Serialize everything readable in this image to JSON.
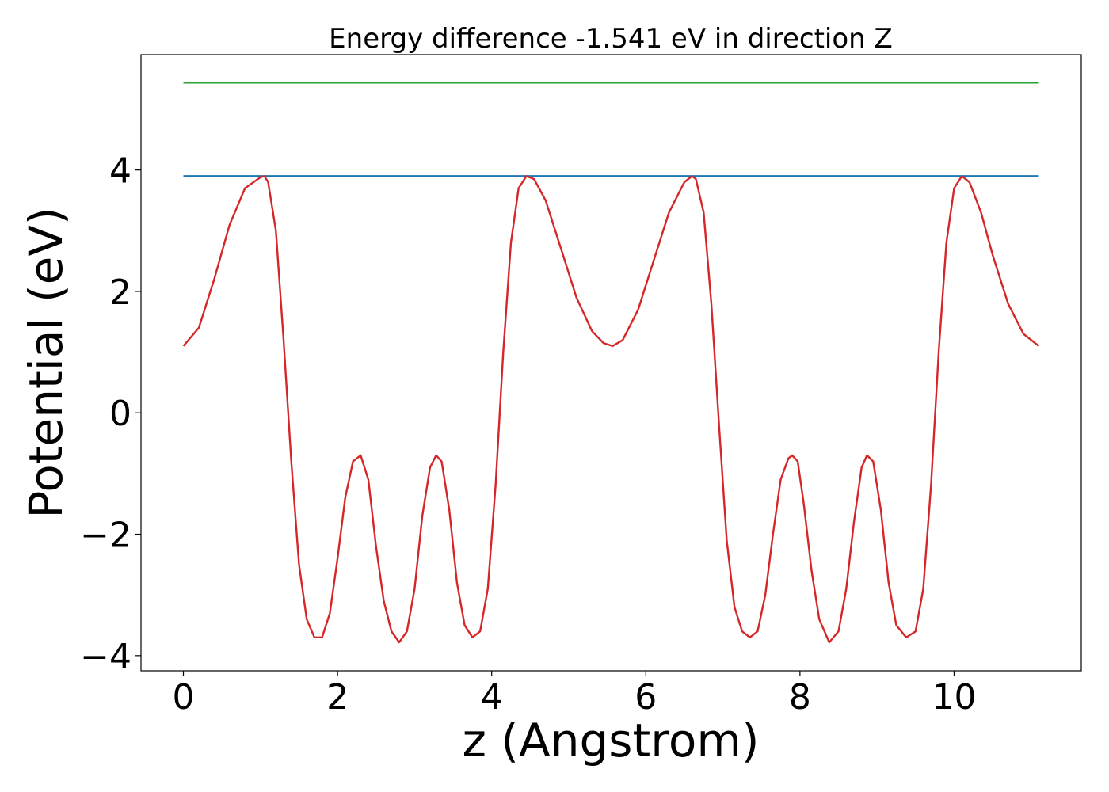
{
  "chart_data": {
    "type": "line",
    "title": "Energy difference -1.541 eV in direction Z",
    "xlabel": "z (Angstrom)",
    "ylabel": "Potential (eV)",
    "xlim": [
      -0.55,
      11.65
    ],
    "ylim": [
      -4.25,
      5.9
    ],
    "xticks": [
      0,
      2,
      4,
      6,
      8,
      10
    ],
    "xtick_labels": [
      "0",
      "2",
      "4",
      "6",
      "8",
      "10"
    ],
    "yticks": [
      -4,
      -2,
      0,
      2,
      4
    ],
    "ytick_labels": [
      "−4",
      "−2",
      "0",
      "2",
      "4"
    ],
    "grid": false,
    "series": [
      {
        "color": "#2ca02c",
        "x": [
          0,
          11.1
        ],
        "y": [
          5.44,
          5.44
        ]
      },
      {
        "color": "#1f77b4",
        "x": [
          0,
          11.1
        ],
        "y": [
          3.9,
          3.9
        ]
      },
      {
        "color": "#d62728",
        "x": [
          0,
          0.2,
          0.4,
          0.6,
          0.8,
          1.0,
          1.05,
          1.1,
          1.2,
          1.3,
          1.4,
          1.5,
          1.6,
          1.7,
          1.8,
          1.9,
          2.0,
          2.1,
          2.2,
          2.3,
          2.4,
          2.5,
          2.6,
          2.7,
          2.8,
          2.9,
          3.0,
          3.1,
          3.2,
          3.28,
          3.35,
          3.45,
          3.55,
          3.65,
          3.75,
          3.85,
          3.95,
          4.05,
          4.15,
          4.25,
          4.35,
          4.45,
          4.55,
          4.7,
          4.9,
          5.1,
          5.3,
          5.45,
          5.57,
          5.7,
          5.9,
          6.1,
          6.3,
          6.5,
          6.6,
          6.65,
          6.75,
          6.85,
          6.95,
          7.05,
          7.15,
          7.25,
          7.35,
          7.45,
          7.55,
          7.65,
          7.75,
          7.85,
          7.9,
          7.97,
          8.05,
          8.15,
          8.25,
          8.38,
          8.5,
          8.6,
          8.7,
          8.8,
          8.87,
          8.95,
          9.05,
          9.15,
          9.25,
          9.38,
          9.5,
          9.6,
          9.7,
          9.8,
          9.9,
          10.0,
          10.1,
          10.2,
          10.35,
          10.5,
          10.7,
          10.9,
          11.1
        ],
        "y": [
          1.1,
          1.4,
          2.2,
          3.1,
          3.7,
          3.88,
          3.9,
          3.8,
          3.0,
          1.2,
          -0.8,
          -2.5,
          -3.4,
          -3.7,
          -3.7,
          -3.3,
          -2.4,
          -1.4,
          -0.8,
          -0.7,
          -1.1,
          -2.2,
          -3.1,
          -3.6,
          -3.78,
          -3.6,
          -2.9,
          -1.7,
          -0.9,
          -0.7,
          -0.8,
          -1.6,
          -2.8,
          -3.5,
          -3.7,
          -3.6,
          -2.9,
          -1.2,
          1.0,
          2.8,
          3.7,
          3.9,
          3.85,
          3.5,
          2.7,
          1.9,
          1.35,
          1.15,
          1.1,
          1.2,
          1.7,
          2.5,
          3.3,
          3.8,
          3.9,
          3.85,
          3.3,
          1.8,
          -0.2,
          -2.1,
          -3.2,
          -3.6,
          -3.7,
          -3.6,
          -3.0,
          -2.0,
          -1.1,
          -0.75,
          -0.7,
          -0.8,
          -1.5,
          -2.6,
          -3.4,
          -3.78,
          -3.6,
          -2.9,
          -1.8,
          -0.9,
          -0.7,
          -0.8,
          -1.6,
          -2.8,
          -3.5,
          -3.7,
          -3.6,
          -2.9,
          -1.2,
          1.0,
          2.8,
          3.7,
          3.9,
          3.8,
          3.3,
          2.6,
          1.8,
          1.3,
          1.1
        ]
      }
    ]
  }
}
